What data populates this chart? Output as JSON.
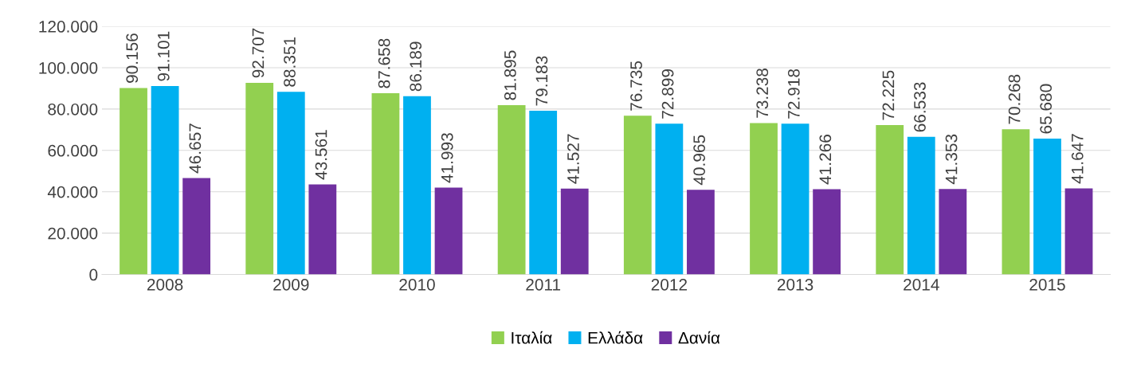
{
  "chart_data": {
    "type": "bar",
    "categories": [
      "2008",
      "2009",
      "2010",
      "2011",
      "2012",
      "2013",
      "2014",
      "2015"
    ],
    "series": [
      {
        "name": "Ιταλία",
        "color": "#92d050",
        "values": [
          90156,
          92707,
          87658,
          81895,
          76735,
          73238,
          72225,
          70268
        ],
        "value_labels": [
          "90.156",
          "92.707",
          "87.658",
          "81.895",
          "76.735",
          "73.238",
          "72.225",
          "70.268"
        ]
      },
      {
        "name": "Ελλάδα",
        "color": "#00b0f0",
        "values": [
          91101,
          88351,
          86189,
          79183,
          72899,
          72918,
          66533,
          65680
        ],
        "value_labels": [
          "91.101",
          "88.351",
          "86.189",
          "79.183",
          "72.899",
          "72.918",
          "66.533",
          "65.680"
        ]
      },
      {
        "name": "Δανία",
        "color": "#7030a0",
        "values": [
          46657,
          43561,
          41993,
          41527,
          40965,
          41266,
          41353,
          41647
        ],
        "value_labels": [
          "46.657",
          "43.561",
          "41.993",
          "41.527",
          "40.965",
          "41.266",
          "41.353",
          "41.647"
        ]
      }
    ],
    "ylim": [
      0,
      120000
    ],
    "yticks": [
      {
        "value": 0,
        "label": "0"
      },
      {
        "value": 20000,
        "label": "20.000"
      },
      {
        "value": 40000,
        "label": "40.000"
      },
      {
        "value": 60000,
        "label": "60.000"
      },
      {
        "value": 80000,
        "label": "80.000"
      },
      {
        "value": 100000,
        "label": "100.000"
      },
      {
        "value": 120000,
        "label": "120.000"
      }
    ],
    "grid": "y",
    "legend": "bottom"
  }
}
